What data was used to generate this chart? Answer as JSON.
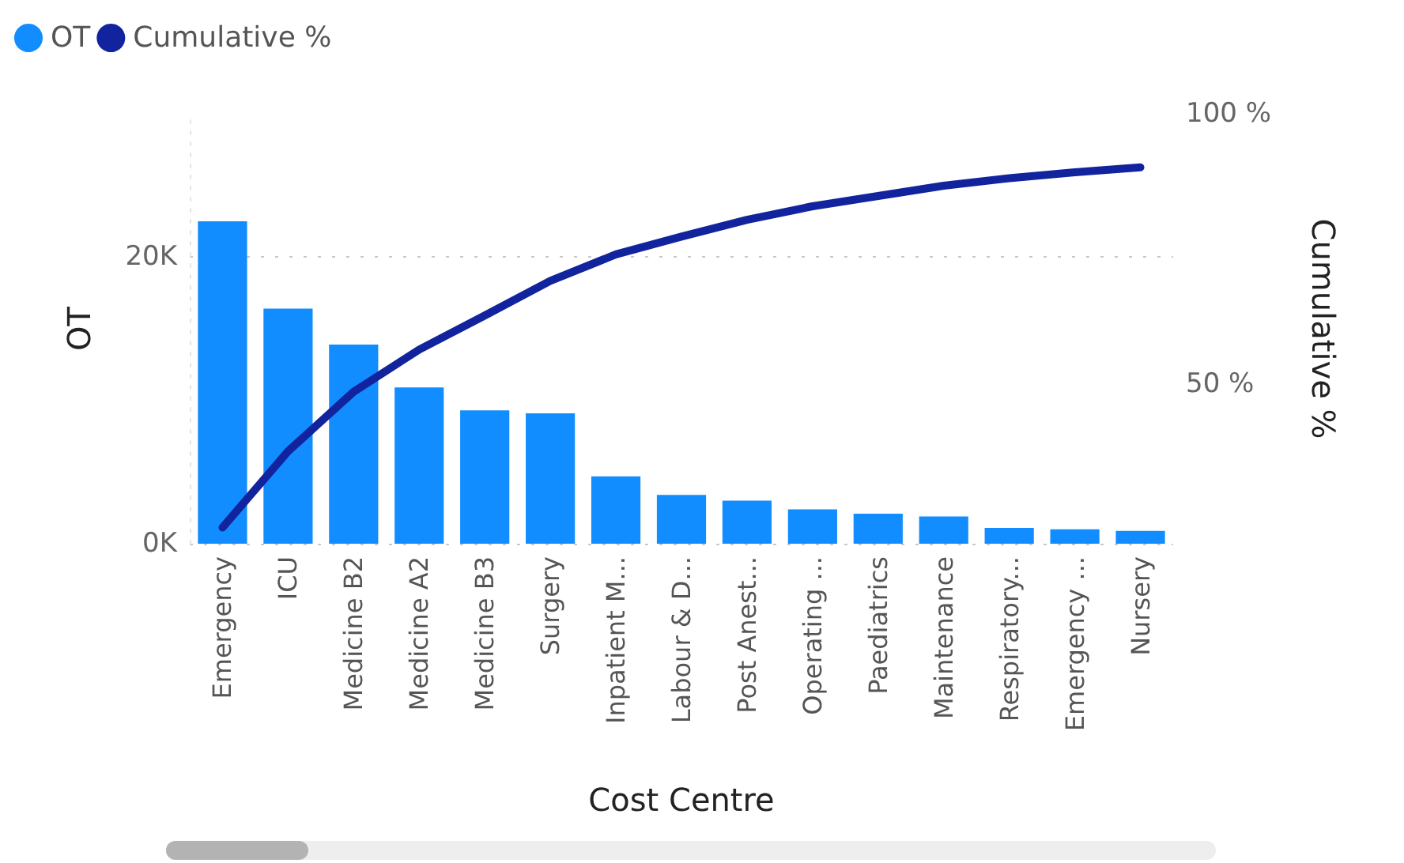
{
  "chart_data": {
    "type": "bar",
    "xlabel": "Cost Centre",
    "ylabel": "OT",
    "y2label": "Cumulative %",
    "categories": [
      "Emergency",
      "ICU",
      "Medicine B2",
      "Medicine A2",
      "Medicine B3",
      "Surgery",
      "Inpatient M...",
      "Labour & D...",
      "Post Anest...",
      "Operating ...",
      "Paediatrics",
      "Maintenance",
      "Respiratory...",
      "Emergency ...",
      "Nursery"
    ],
    "series": [
      {
        "name": "OT",
        "color": "#118dff",
        "values": [
          22500,
          16400,
          13900,
          10900,
          9300,
          9100,
          4700,
          3400,
          3000,
          2400,
          2100,
          1900,
          1100,
          1000,
          900
        ]
      },
      {
        "name": "Cumulative %",
        "type": "line",
        "axis": "y2",
        "color": "#12239e",
        "values": [
          23.5,
          37.6,
          48.6,
          56.4,
          62.7,
          69.1,
          74.0,
          77.3,
          80.4,
          82.9,
          84.8,
          86.7,
          88.1,
          89.2,
          90.1
        ]
      }
    ],
    "ylim": [
      0,
      30000
    ],
    "yticks": [
      {
        "value": 0,
        "label": "0K"
      },
      {
        "value": 20000,
        "label": "20K"
      }
    ],
    "y2lim": [
      20.5,
      100
    ],
    "y2ticks": [
      {
        "value": 50,
        "label": "50 %"
      },
      {
        "value": 100,
        "label": "100 %"
      }
    ],
    "grid": "y",
    "legend": "top left",
    "marker": "none",
    "line_style": "solid"
  }
}
